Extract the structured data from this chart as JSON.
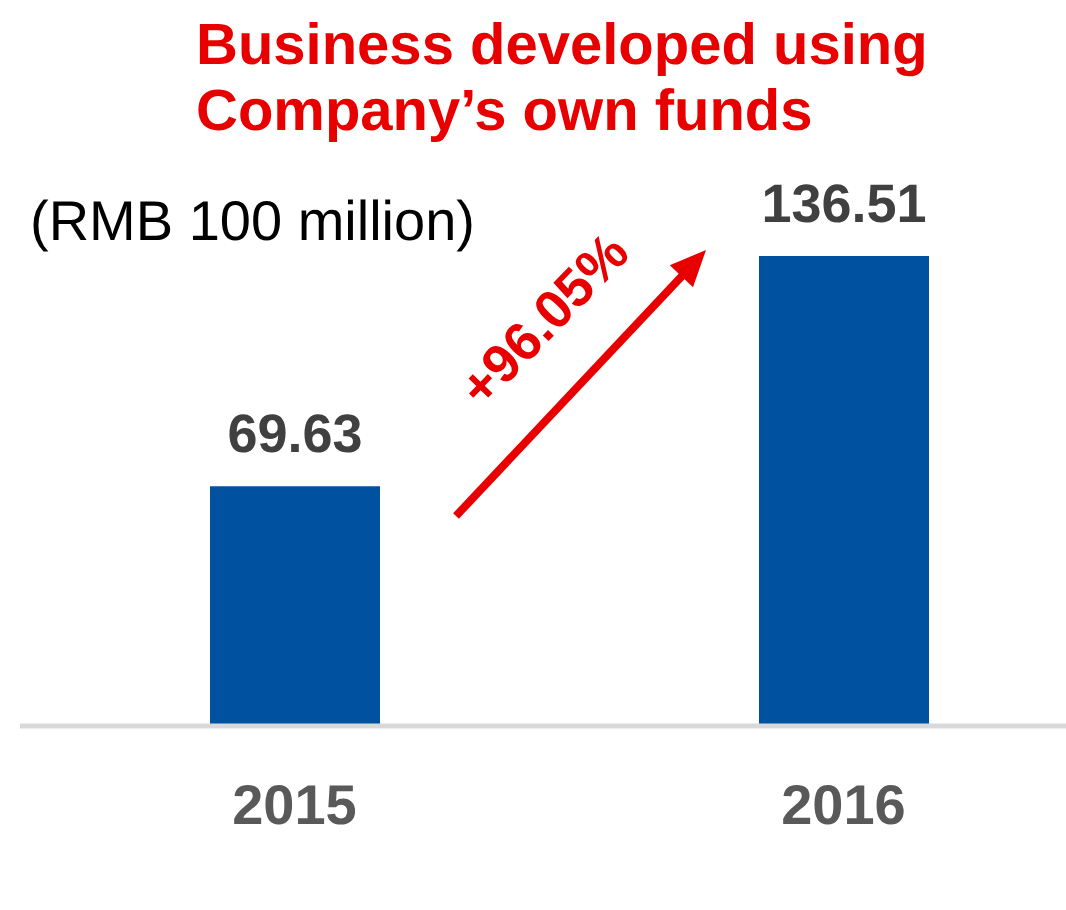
{
  "chart_data": {
    "type": "bar",
    "title": "Business developed using Company’s own funds",
    "ylabel": "(RMB 100 million)",
    "categories": [
      "2015",
      "2016"
    ],
    "values": [
      69.63,
      136.51
    ],
    "color": "#0052a0",
    "data_labels": true,
    "annotations": [
      "+96.05%"
    ]
  }
}
